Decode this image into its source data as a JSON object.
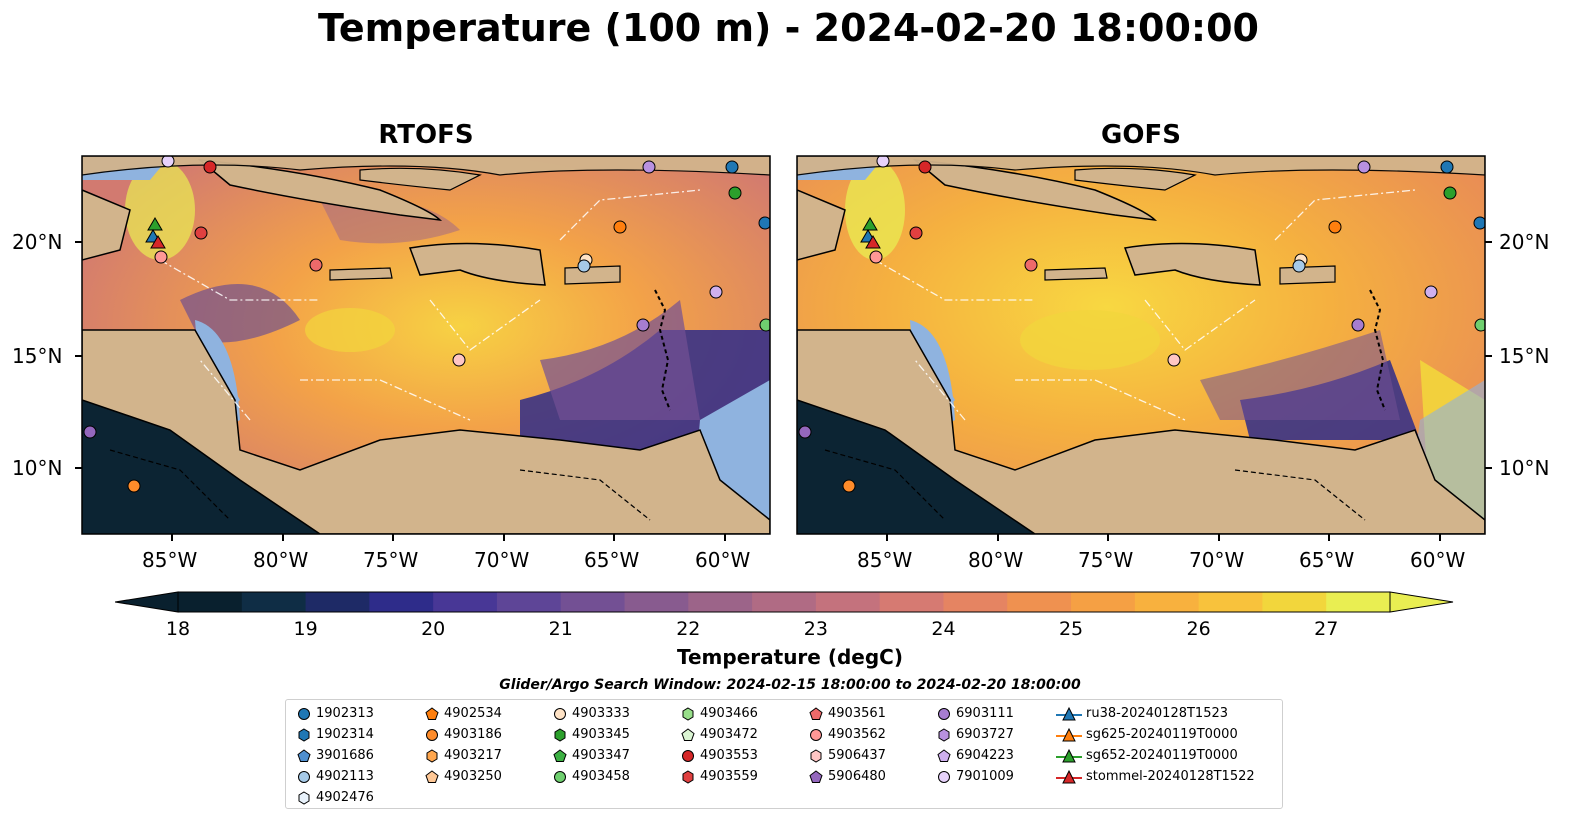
{
  "title": "Temperature (100 m) - 2024-02-20 18:00:00",
  "panels": [
    {
      "title": "RTOFS"
    },
    {
      "title": "GOFS"
    }
  ],
  "x_ticks": [
    "85°W",
    "80°W",
    "75°W",
    "70°W",
    "65°W",
    "60°W"
  ],
  "y_ticks": [
    "20°N",
    "15°N",
    "10°N"
  ],
  "colorbar": {
    "label": "Temperature (degC)",
    "ticks": [
      "18",
      "19",
      "20",
      "21",
      "22",
      "23",
      "24",
      "25",
      "26",
      "27"
    ],
    "colors": [
      "#09202e",
      "#0f2d45",
      "#1e2a66",
      "#2e2c8a",
      "#483796",
      "#5e4597",
      "#735094",
      "#885b8f",
      "#9c6489",
      "#b06b84",
      "#c4727d",
      "#d67a72",
      "#e58462",
      "#ef9150",
      "#f5a044",
      "#f8b13e",
      "#f8c23c",
      "#f2d63c",
      "#e9ee52"
    ]
  },
  "search_window": "Glider/Argo Search Window: 2024-02-15 18:00:00 to 2024-02-20 18:00:00",
  "legend": [
    {
      "label": "1902313",
      "color": "#1f77b4",
      "marker": "circle"
    },
    {
      "label": "1902314",
      "color": "#1f77b4",
      "marker": "hexagon"
    },
    {
      "label": "3901686",
      "color": "#4f8fcf",
      "marker": "pentagon"
    },
    {
      "label": "4902113",
      "color": "#a6cae8",
      "marker": "circle"
    },
    {
      "label": "4902476",
      "color": "#e8f2fb",
      "marker": "hexagon"
    },
    {
      "label": "4902534",
      "color": "#ff7f0e",
      "marker": "pentagon"
    },
    {
      "label": "4903186",
      "color": "#ff8c2a",
      "marker": "circle"
    },
    {
      "label": "4903217",
      "color": "#ffa64d",
      "marker": "hexagon"
    },
    {
      "label": "4903250",
      "color": "#ffc896",
      "marker": "pentagon"
    },
    {
      "label": "4903333",
      "color": "#ffe3c6",
      "marker": "circle"
    },
    {
      "label": "4903345",
      "color": "#2ca02c",
      "marker": "hexagon"
    },
    {
      "label": "4903347",
      "color": "#3cb043",
      "marker": "pentagon"
    },
    {
      "label": "4903458",
      "color": "#6fcf6f",
      "marker": "circle"
    },
    {
      "label": "4903466",
      "color": "#98df8a",
      "marker": "hexagon"
    },
    {
      "label": "4903472",
      "color": "#dbf5d3",
      "marker": "pentagon"
    },
    {
      "label": "4903553",
      "color": "#d62728",
      "marker": "circle"
    },
    {
      "label": "4903559",
      "color": "#e04040",
      "marker": "hexagon"
    },
    {
      "label": "4903561",
      "color": "#ee6a6a",
      "marker": "pentagon"
    },
    {
      "label": "4903562",
      "color": "#ff9896",
      "marker": "circle"
    },
    {
      "label": "5906437",
      "color": "#ffc6c4",
      "marker": "hexagon"
    },
    {
      "label": "5906480",
      "color": "#9467bd",
      "marker": "pentagon"
    },
    {
      "label": "6903111",
      "color": "#a67dd0",
      "marker": "circle"
    },
    {
      "label": "6903727",
      "color": "#b891e0",
      "marker": "hexagon"
    },
    {
      "label": "6904223",
      "color": "#cfb0ee",
      "marker": "pentagon"
    },
    {
      "label": "7901009",
      "color": "#e7d2fb",
      "marker": "circle"
    },
    {
      "label": "ru38-20240128T1523",
      "color": "#1f77b4",
      "marker": "triangle-line"
    },
    {
      "label": "sg625-20240119T0000",
      "color": "#ff7f0e",
      "marker": "triangle-line"
    },
    {
      "label": "sg652-20240119T0000",
      "color": "#2ca02c",
      "marker": "triangle-line"
    },
    {
      "label": "stommel-20240128T1522",
      "color": "#d62728",
      "marker": "triangle-line"
    }
  ],
  "colors": {
    "land": "#d2b48c",
    "shelf": "#8fb3df",
    "deep_pacific": "#0c2433"
  }
}
